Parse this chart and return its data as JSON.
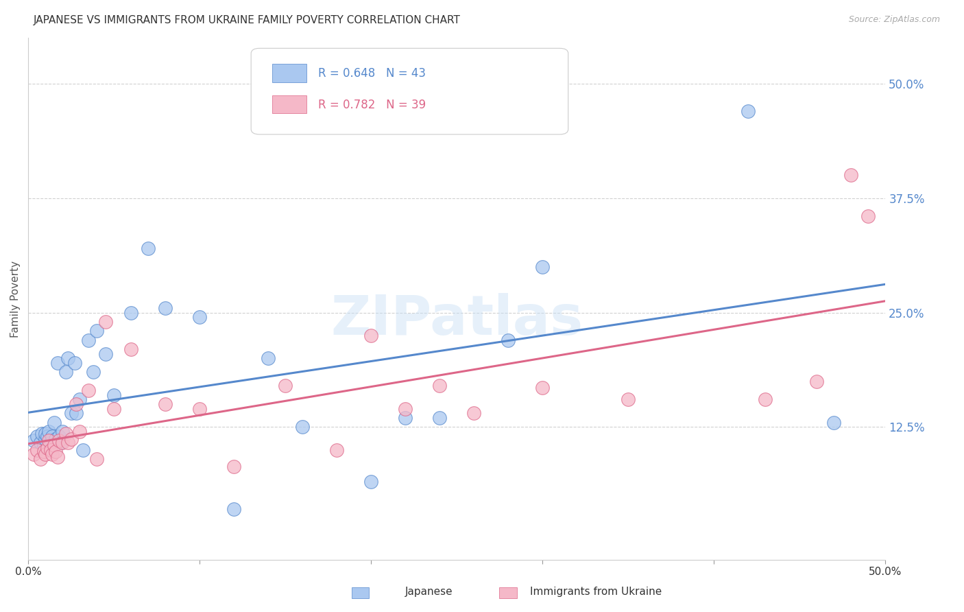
{
  "title": "JAPANESE VS IMMIGRANTS FROM UKRAINE FAMILY POVERTY CORRELATION CHART",
  "source": "Source: ZipAtlas.com",
  "ylabel": "Family Poverty",
  "ytick_labels": [
    "50.0%",
    "37.5%",
    "25.0%",
    "12.5%"
  ],
  "ytick_positions": [
    0.5,
    0.375,
    0.25,
    0.125
  ],
  "xlim": [
    0.0,
    0.5
  ],
  "ylim": [
    -0.02,
    0.55
  ],
  "watermark": "ZIPatlas",
  "legend_r1": "R = 0.648",
  "legend_n1": "N = 43",
  "legend_r2": "R = 0.782",
  "legend_n2": "N = 39",
  "label1": "Japanese",
  "label2": "Immigrants from Ukraine",
  "color1": "#aac8f0",
  "color2": "#f5b8c8",
  "line_color1": "#5588cc",
  "line_color2": "#dd6688",
  "tick_color": "#5588cc",
  "japanese_x": [
    0.003,
    0.005,
    0.007,
    0.008,
    0.009,
    0.01,
    0.01,
    0.011,
    0.012,
    0.013,
    0.014,
    0.015,
    0.016,
    0.017,
    0.018,
    0.019,
    0.02,
    0.022,
    0.023,
    0.025,
    0.027,
    0.028,
    0.03,
    0.032,
    0.035,
    0.038,
    0.04,
    0.045,
    0.05,
    0.06,
    0.07,
    0.08,
    0.1,
    0.12,
    0.14,
    0.16,
    0.2,
    0.22,
    0.24,
    0.28,
    0.3,
    0.42,
    0.47
  ],
  "japanese_y": [
    0.11,
    0.115,
    0.108,
    0.118,
    0.105,
    0.112,
    0.118,
    0.115,
    0.12,
    0.108,
    0.115,
    0.13,
    0.112,
    0.195,
    0.115,
    0.108,
    0.12,
    0.185,
    0.2,
    0.14,
    0.195,
    0.14,
    0.155,
    0.1,
    0.22,
    0.185,
    0.23,
    0.205,
    0.16,
    0.25,
    0.32,
    0.255,
    0.245,
    0.035,
    0.2,
    0.125,
    0.065,
    0.135,
    0.135,
    0.22,
    0.3,
    0.47,
    0.13
  ],
  "ukraine_x": [
    0.003,
    0.005,
    0.007,
    0.009,
    0.01,
    0.011,
    0.012,
    0.013,
    0.014,
    0.015,
    0.016,
    0.017,
    0.018,
    0.02,
    0.022,
    0.023,
    0.025,
    0.028,
    0.03,
    0.035,
    0.04,
    0.045,
    0.05,
    0.06,
    0.08,
    0.1,
    0.12,
    0.15,
    0.18,
    0.2,
    0.22,
    0.24,
    0.26,
    0.3,
    0.35,
    0.43,
    0.46,
    0.48,
    0.49
  ],
  "ukraine_y": [
    0.095,
    0.1,
    0.09,
    0.098,
    0.095,
    0.102,
    0.11,
    0.1,
    0.095,
    0.105,
    0.098,
    0.092,
    0.11,
    0.108,
    0.118,
    0.108,
    0.112,
    0.15,
    0.12,
    0.165,
    0.09,
    0.24,
    0.145,
    0.21,
    0.15,
    0.145,
    0.082,
    0.17,
    0.1,
    0.225,
    0.145,
    0.17,
    0.14,
    0.168,
    0.155,
    0.155,
    0.175,
    0.4,
    0.355
  ],
  "background_color": "#ffffff",
  "grid_color": "#cccccc"
}
